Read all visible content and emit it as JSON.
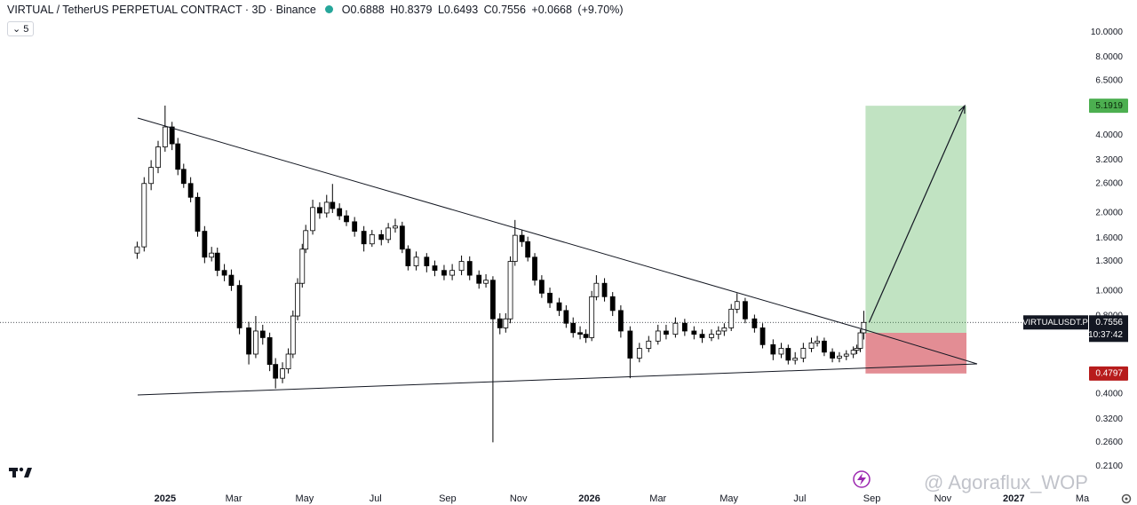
{
  "header": {
    "symbol": "VIRTUAL / TetherUS PERPETUAL CONTRACT · 3D · Binance",
    "o_label": "O",
    "h_label": "H",
    "l_label": "L",
    "c_label": "C",
    "change": "+0.0668",
    "change_pct": "(+9.70%)",
    "indicator": "5"
  },
  "chart_data": {
    "type": "candlestick",
    "log_scale": true,
    "x": [
      -24,
      -18,
      -12,
      -6,
      0,
      6,
      11,
      16,
      22,
      28,
      34,
      40,
      45,
      51,
      57,
      64,
      72,
      78,
      84,
      90,
      95,
      101,
      106,
      110,
      114,
      118,
      121,
      127,
      133,
      139,
      144,
      150,
      156,
      163,
      171,
      178,
      186,
      192,
      198,
      204,
      209,
      216,
      225,
      232,
      240,
      247,
      255,
      262,
      270,
      276,
      282,
      288,
      293,
      297,
      301,
      307,
      312,
      318,
      324,
      331,
      339,
      345,
      351,
      357,
      362,
      367,
      371,
      378,
      385,
      392,
      400,
      408,
      416,
      424,
      431,
      439,
      447,
      455,
      462,
      470,
      476,
      481,
      487,
      492,
      499,
      507,
      514,
      523,
      530,
      536,
      542,
      549,
      556,
      561,
      567,
      574,
      580,
      586,
      592,
      595,
      598,
      601
    ],
    "open": [
      1.4,
      1.48,
      2.6,
      3.0,
      3.6,
      4.3,
      3.7,
      2.95,
      2.6,
      2.3,
      1.7,
      1.35,
      1.4,
      1.2,
      1.15,
      1.05,
      0.72,
      0.57,
      0.7,
      0.66,
      0.52,
      0.46,
      0.5,
      0.57,
      0.8,
      1.07,
      1.45,
      1.71,
      2.1,
      2.0,
      2.2,
      2.08,
      1.95,
      1.85,
      1.7,
      1.52,
      1.65,
      1.58,
      1.75,
      1.78,
      1.45,
      1.25,
      1.35,
      1.25,
      1.2,
      1.15,
      1.2,
      1.3,
      1.15,
      1.07,
      1.1,
      0.78,
      0.72,
      0.78,
      1.3,
      1.64,
      1.55,
      1.35,
      1.1,
      0.98,
      0.9,
      0.84,
      0.75,
      0.69,
      0.68,
      0.66,
      0.95,
      1.07,
      0.95,
      0.84,
      0.7,
      0.55,
      0.6,
      0.64,
      0.7,
      0.68,
      0.75,
      0.7,
      0.68,
      0.66,
      0.68,
      0.7,
      0.72,
      0.85,
      0.91,
      0.78,
      0.72,
      0.62,
      0.57,
      0.6,
      0.54,
      0.55,
      0.6,
      0.63,
      0.64,
      0.58,
      0.55,
      0.56,
      0.57,
      0.59,
      0.6,
      0.6888
    ],
    "high": [
      1.55,
      2.75,
      3.2,
      3.8,
      5.2,
      4.5,
      3.9,
      3.1,
      2.75,
      2.4,
      1.78,
      1.48,
      1.47,
      1.27,
      1.21,
      1.1,
      0.76,
      0.8,
      0.74,
      0.69,
      0.55,
      0.53,
      0.6,
      0.84,
      1.12,
      1.52,
      1.8,
      2.25,
      2.2,
      2.35,
      2.59,
      2.18,
      2.05,
      1.93,
      1.78,
      1.72,
      1.72,
      1.83,
      1.9,
      1.85,
      1.5,
      1.42,
      1.4,
      1.31,
      1.26,
      1.27,
      1.37,
      1.36,
      1.2,
      1.16,
      1.14,
      0.82,
      0.82,
      1.36,
      1.88,
      1.72,
      1.62,
      1.4,
      1.15,
      1.03,
      0.94,
      0.88,
      0.79,
      0.73,
      0.71,
      1.0,
      1.15,
      1.12,
      0.99,
      0.88,
      0.73,
      0.63,
      0.67,
      0.74,
      0.74,
      0.79,
      0.78,
      0.73,
      0.71,
      0.71,
      0.73,
      0.75,
      0.89,
      0.98,
      0.94,
      0.81,
      0.75,
      0.65,
      0.63,
      0.62,
      0.58,
      0.63,
      0.66,
      0.67,
      0.66,
      0.6,
      0.58,
      0.59,
      0.61,
      0.62,
      0.71,
      0.8379
    ],
    "low": [
      1.33,
      1.42,
      2.45,
      2.85,
      3.45,
      3.5,
      2.8,
      2.5,
      2.2,
      1.62,
      1.28,
      1.3,
      1.14,
      1.09,
      1.0,
      0.68,
      0.52,
      0.55,
      0.62,
      0.49,
      0.42,
      0.44,
      0.48,
      0.55,
      0.77,
      1.03,
      1.4,
      1.65,
      1.9,
      1.92,
      2.0,
      1.88,
      1.78,
      1.62,
      1.42,
      1.48,
      1.5,
      1.53,
      1.68,
      1.4,
      1.2,
      1.2,
      1.18,
      1.14,
      1.1,
      1.1,
      1.15,
      1.1,
      1.02,
      1.03,
      0.26,
      0.68,
      0.69,
      0.75,
      1.25,
      1.48,
      1.3,
      1.05,
      0.94,
      0.86,
      0.8,
      0.72,
      0.66,
      0.65,
      0.63,
      0.64,
      0.92,
      0.91,
      0.8,
      0.66,
      0.46,
      0.53,
      0.58,
      0.62,
      0.65,
      0.66,
      0.67,
      0.65,
      0.63,
      0.64,
      0.65,
      0.67,
      0.7,
      0.82,
      0.75,
      0.69,
      0.6,
      0.54,
      0.55,
      0.52,
      0.52,
      0.53,
      0.58,
      0.61,
      0.56,
      0.53,
      0.53,
      0.54,
      0.55,
      0.57,
      0.58,
      0.6493
    ],
    "close": [
      1.48,
      2.6,
      3.0,
      3.6,
      4.3,
      3.7,
      2.95,
      2.6,
      2.3,
      1.7,
      1.35,
      1.4,
      1.2,
      1.15,
      1.05,
      0.72,
      0.57,
      0.7,
      0.66,
      0.52,
      0.46,
      0.5,
      0.57,
      0.8,
      1.07,
      1.45,
      1.71,
      2.1,
      2.0,
      2.2,
      2.08,
      1.95,
      1.85,
      1.7,
      1.52,
      1.65,
      1.58,
      1.75,
      1.78,
      1.45,
      1.25,
      1.35,
      1.25,
      1.2,
      1.15,
      1.2,
      1.3,
      1.15,
      1.07,
      1.1,
      0.78,
      0.72,
      0.78,
      1.3,
      1.64,
      1.55,
      1.35,
      1.1,
      0.98,
      0.9,
      0.84,
      0.75,
      0.69,
      0.68,
      0.66,
      0.95,
      1.07,
      0.95,
      0.84,
      0.7,
      0.55,
      0.6,
      0.64,
      0.7,
      0.68,
      0.75,
      0.7,
      0.68,
      0.66,
      0.68,
      0.7,
      0.72,
      0.85,
      0.91,
      0.78,
      0.72,
      0.62,
      0.57,
      0.6,
      0.54,
      0.55,
      0.6,
      0.63,
      0.64,
      0.58,
      0.55,
      0.56,
      0.57,
      0.59,
      0.6,
      0.6888,
      0.7556
    ],
    "xlim": [
      -142,
      794
    ],
    "ylim": [
      0.18,
      13.3
    ],
    "xticks": [
      {
        "value": 0,
        "label": "2025"
      },
      {
        "value": 59,
        "label": "Mar"
      },
      {
        "value": 120,
        "label": "May"
      },
      {
        "value": 181,
        "label": "Jul"
      },
      {
        "value": 243,
        "label": "Sep"
      },
      {
        "value": 304,
        "label": "Nov"
      },
      {
        "value": 365,
        "label": "2026"
      },
      {
        "value": 424,
        "label": "Mar"
      },
      {
        "value": 485,
        "label": "May"
      },
      {
        "value": 546,
        "label": "Jul"
      },
      {
        "value": 608,
        "label": "Sep"
      },
      {
        "value": 669,
        "label": "Nov"
      },
      {
        "value": 730,
        "label": "2027"
      },
      {
        "value": 789,
        "label": "Ma"
      }
    ],
    "yticks": [
      {
        "value": 10,
        "label": "10.0000"
      },
      {
        "value": 8,
        "label": "8.0000"
      },
      {
        "value": 6.5,
        "label": "6.5000"
      },
      {
        "value": 4,
        "label": "4.0000"
      },
      {
        "value": 3.2,
        "label": "3.2000"
      },
      {
        "value": 2.6,
        "label": "2.6000"
      },
      {
        "value": 2,
        "label": "2.0000"
      },
      {
        "value": 1.6,
        "label": "1.6000"
      },
      {
        "value": 1.3,
        "label": "1.3000"
      },
      {
        "value": 1,
        "label": "1.0000"
      },
      {
        "value": 0.8,
        "label": "0.8000"
      },
      {
        "value": 0.4,
        "label": "0.4000"
      },
      {
        "value": 0.32,
        "label": "0.3200"
      },
      {
        "value": 0.26,
        "label": "0.2600"
      },
      {
        "value": 0.21,
        "label": "0.2100"
      }
    ],
    "up_color": "#ffffff",
    "down_color": "#000000",
    "target": 5.1919,
    "stop": 0.4797,
    "symbol_label": "VIRTUALUSDT.P",
    "countdown": "10:37:42"
  },
  "watermark": "@ Agoraflux_WOP"
}
